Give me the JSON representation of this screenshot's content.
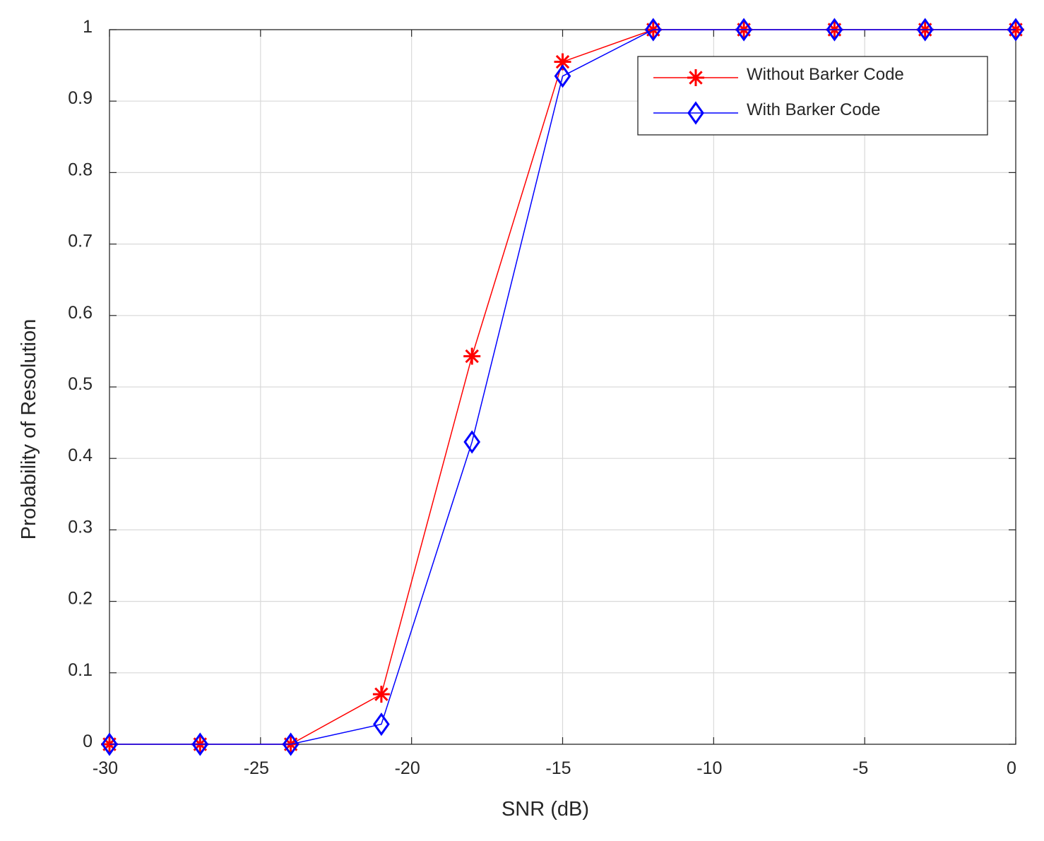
{
  "chart_data": {
    "type": "line",
    "title": "",
    "xlabel": "SNR (dB)",
    "ylabel": "Probability of Resolution",
    "xlim": [
      -30,
      0
    ],
    "ylim": [
      0,
      1
    ],
    "xticks": [
      -30,
      -25,
      -20,
      -15,
      -10,
      -5,
      0
    ],
    "yticks": [
      0,
      0.1,
      0.2,
      0.3,
      0.4,
      0.5,
      0.6,
      0.7,
      0.8,
      0.9,
      1
    ],
    "xtick_labels": [
      "-30",
      "-25",
      "-20",
      "-15",
      "-10",
      "-5",
      "0"
    ],
    "ytick_labels": [
      "0",
      "0.1",
      "0.2",
      "0.3",
      "0.4",
      "0.5",
      "0.6",
      "0.7",
      "0.8",
      "0.9",
      "1"
    ],
    "grid": true,
    "legend_position": "top-right",
    "x": [
      -30,
      -27,
      -24,
      -21,
      -18,
      -15,
      -12,
      -9,
      -6,
      -3,
      0
    ],
    "series": [
      {
        "name": "Without Barker Code",
        "color": "#ff0000",
        "marker": "asterisk",
        "values": [
          0,
          0,
          0,
          0.07,
          0.543,
          0.955,
          1,
          1,
          1,
          1,
          1
        ]
      },
      {
        "name": "With Barker Code",
        "color": "#0000ff",
        "marker": "diamond",
        "values": [
          0,
          0,
          0,
          0.028,
          0.423,
          0.935,
          1,
          1,
          1,
          1,
          1
        ]
      }
    ]
  }
}
